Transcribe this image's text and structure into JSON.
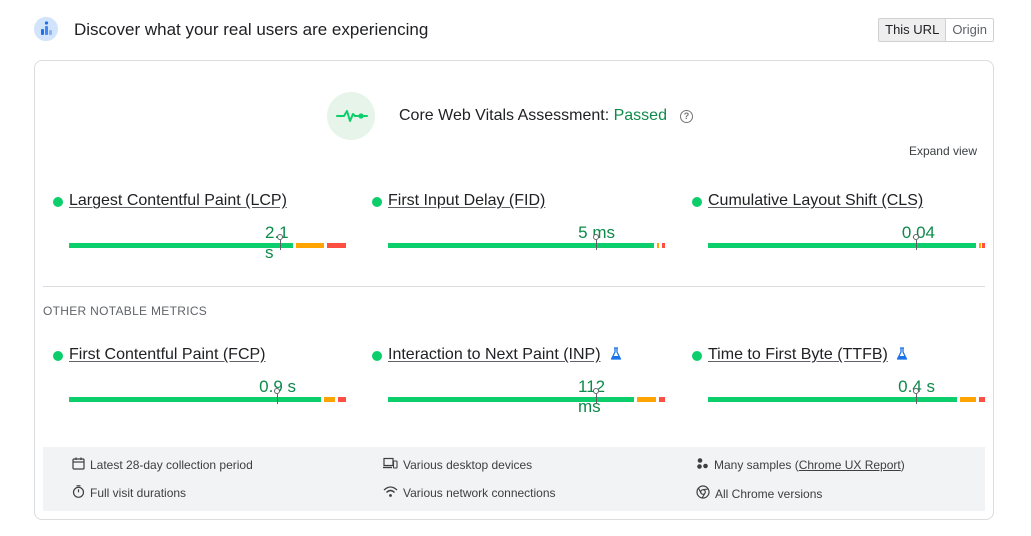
{
  "header": {
    "title": "Discover what your real users are experiencing",
    "toggle": [
      "This URL",
      "Origin"
    ],
    "active_toggle": "This URL"
  },
  "assessment": {
    "label": "Core Web Vitals Assessment: ",
    "status": "Passed",
    "help_symbol": "?",
    "expand_label": "Expand view"
  },
  "core_metrics": [
    {
      "name": "Largest Contentful Paint (LCP)",
      "value": "2.1 s",
      "experimental": false,
      "distribution": {
        "good": 0.82,
        "needs_improvement": 0.11,
        "poor": 0.07
      },
      "marker": 0.76
    },
    {
      "name": "First Input Delay (FID)",
      "value": "5 ms",
      "experimental": false,
      "distribution": {
        "good": 0.97,
        "needs_improvement": 0.02,
        "poor": 0.01
      },
      "marker": 0.75
    },
    {
      "name": "Cumulative Layout Shift (CLS)",
      "value": "0.04",
      "experimental": false,
      "distribution": {
        "good": 0.98,
        "needs_improvement": 0.01,
        "poor": 0.01
      },
      "marker": 0.75
    }
  ],
  "other_section_label": "OTHER NOTABLE METRICS",
  "other_metrics": [
    {
      "name": "First Contentful Paint (FCP)",
      "value": "0.9 s",
      "experimental": false,
      "distribution": {
        "good": 0.92,
        "needs_improvement": 0.05,
        "poor": 0.03
      },
      "marker": 0.75
    },
    {
      "name": "Interaction to Next Paint (INP)",
      "value": "112 ms",
      "experimental": true,
      "distribution": {
        "good": 0.9,
        "needs_improvement": 0.08,
        "poor": 0.02
      },
      "marker": 0.75
    },
    {
      "name": "Time to First Byte (TTFB)",
      "value": "0.4 s",
      "experimental": true,
      "distribution": {
        "good": 0.91,
        "needs_improvement": 0.07,
        "poor": 0.02
      },
      "marker": 0.75
    }
  ],
  "footer": {
    "collection_period": "Latest 28-day collection period",
    "visit_durations": "Full visit durations",
    "devices": "Various desktop devices",
    "network": "Various network connections",
    "samples_prefix": "Many samples (",
    "samples_link": "Chrome UX Report",
    "samples_suffix": ")",
    "chrome_versions": "All Chrome versions"
  },
  "colors": {
    "good": "#0cce6b",
    "needs_improvement": "#ffa400",
    "poor": "#ff4e42",
    "pass_text": "#0d8a4a",
    "experimental_icon": "#1a73e8"
  },
  "icons": {
    "logo": "crux-logo-icon",
    "assessment": "pulse-icon",
    "help": "help-circle-icon",
    "experimental": "flask-icon",
    "calendar": "calendar-icon",
    "timer": "timer-icon",
    "devices": "devices-icon",
    "wifi": "wifi-icon",
    "samples": "people-icon",
    "chrome": "chrome-icon"
  }
}
